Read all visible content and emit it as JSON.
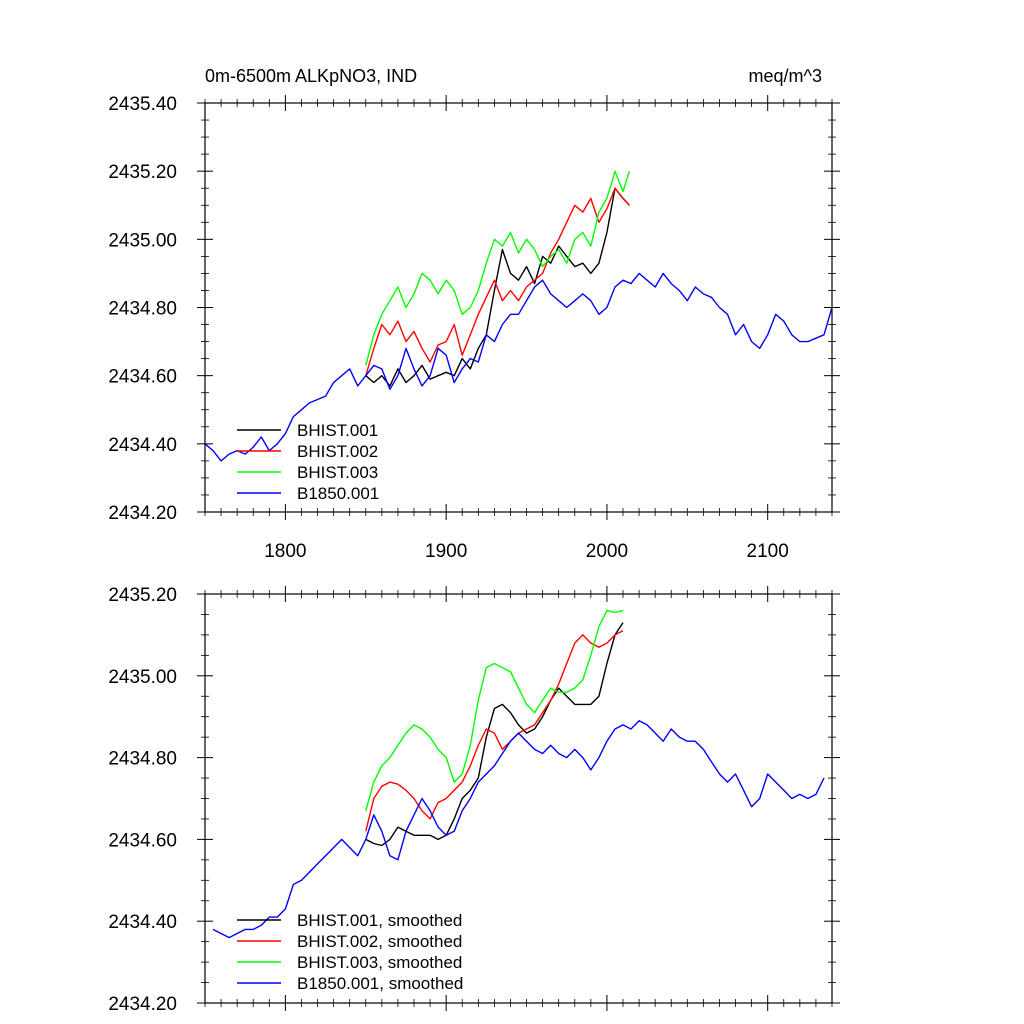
{
  "chart_data": [
    {
      "type": "line",
      "title": "0m-6500m ALKpNO3, IND",
      "units": "meq/m^3",
      "xlabel": "",
      "ylabel": "",
      "xlim": [
        1750,
        2140
      ],
      "ylim": [
        2434.2,
        2435.4
      ],
      "yticks": [
        2434.2,
        2434.4,
        2434.6,
        2434.8,
        2435.0,
        2435.2,
        2435.4
      ],
      "ytick_labels": [
        "2434.20",
        "2434.40",
        "2434.60",
        "2434.80",
        "2435.00",
        "2435.20",
        "2435.40"
      ],
      "xticks": [
        1800,
        1900,
        2000,
        2100
      ],
      "xtick_labels": [
        "1800",
        "1900",
        "2000",
        "2100"
      ],
      "legend_position": "bottom-left",
      "series": [
        {
          "name": "BHIST.001",
          "color": "#000000",
          "x": [
            1850,
            1855,
            1860,
            1865,
            1870,
            1875,
            1880,
            1885,
            1890,
            1895,
            1900,
            1905,
            1910,
            1915,
            1920,
            1925,
            1930,
            1935,
            1940,
            1945,
            1950,
            1955,
            1960,
            1965,
            1970,
            1975,
            1980,
            1985,
            1990,
            1995,
            2000,
            2005,
            2010,
            2014
          ],
          "y": [
            2434.6,
            2434.58,
            2434.6,
            2434.57,
            2434.62,
            2434.58,
            2434.6,
            2434.63,
            2434.59,
            2434.6,
            2434.61,
            2434.6,
            2434.65,
            2434.62,
            2434.68,
            2434.72,
            2434.85,
            2434.97,
            2434.9,
            2434.88,
            2434.92,
            2434.87,
            2434.95,
            2434.93,
            2434.98,
            2434.95,
            2434.92,
            2434.93,
            2434.9,
            2434.93,
            2435.02,
            2435.15,
            2435.12,
            2435.1
          ]
        },
        {
          "name": "BHIST.002",
          "color": "#ff0000",
          "x": [
            1850,
            1855,
            1860,
            1865,
            1870,
            1875,
            1880,
            1885,
            1890,
            1895,
            1900,
            1905,
            1910,
            1915,
            1920,
            1925,
            1930,
            1935,
            1940,
            1945,
            1950,
            1955,
            1960,
            1965,
            1970,
            1975,
            1980,
            1985,
            1990,
            1995,
            2000,
            2005,
            2010,
            2014
          ],
          "y": [
            2434.6,
            2434.68,
            2434.75,
            2434.72,
            2434.76,
            2434.7,
            2434.73,
            2434.68,
            2434.64,
            2434.69,
            2434.7,
            2434.75,
            2434.66,
            2434.72,
            2434.78,
            2434.83,
            2434.88,
            2434.82,
            2434.85,
            2434.82,
            2434.86,
            2434.88,
            2434.9,
            2434.96,
            2435.0,
            2435.05,
            2435.1,
            2435.08,
            2435.12,
            2435.05,
            2435.09,
            2435.15,
            2435.12,
            2435.1
          ]
        },
        {
          "name": "BHIST.003",
          "color": "#00ff00",
          "x": [
            1850,
            1855,
            1860,
            1865,
            1870,
            1875,
            1880,
            1885,
            1890,
            1895,
            1900,
            1905,
            1910,
            1915,
            1920,
            1925,
            1930,
            1935,
            1940,
            1945,
            1950,
            1955,
            1960,
            1965,
            1970,
            1975,
            1980,
            1985,
            1990,
            1995,
            2000,
            2005,
            2010,
            2014
          ],
          "y": [
            2434.63,
            2434.72,
            2434.78,
            2434.82,
            2434.86,
            2434.8,
            2434.84,
            2434.9,
            2434.88,
            2434.84,
            2434.88,
            2434.85,
            2434.78,
            2434.8,
            2434.85,
            2434.93,
            2435.0,
            2434.98,
            2435.02,
            2434.96,
            2435.0,
            2434.97,
            2434.92,
            2434.95,
            2434.97,
            2434.93,
            2435.0,
            2435.02,
            2434.98,
            2435.08,
            2435.12,
            2435.2,
            2435.14,
            2435.2
          ]
        },
        {
          "name": "B1850.001",
          "color": "#0000ff",
          "x": [
            1750,
            1755,
            1760,
            1765,
            1770,
            1775,
            1780,
            1785,
            1790,
            1795,
            1800,
            1805,
            1810,
            1815,
            1820,
            1825,
            1830,
            1835,
            1840,
            1845,
            1850,
            1855,
            1860,
            1865,
            1870,
            1875,
            1880,
            1885,
            1890,
            1895,
            1900,
            1905,
            1910,
            1915,
            1920,
            1925,
            1930,
            1935,
            1940,
            1945,
            1950,
            1955,
            1960,
            1965,
            1970,
            1975,
            1980,
            1985,
            1990,
            1995,
            2000,
            2005,
            2010,
            2015,
            2020,
            2025,
            2030,
            2035,
            2040,
            2045,
            2050,
            2055,
            2060,
            2065,
            2070,
            2075,
            2080,
            2085,
            2090,
            2095,
            2100,
            2105,
            2110,
            2115,
            2120,
            2125,
            2130,
            2135,
            2140
          ],
          "y": [
            2434.4,
            2434.38,
            2434.35,
            2434.37,
            2434.38,
            2434.37,
            2434.39,
            2434.42,
            2434.38,
            2434.4,
            2434.43,
            2434.48,
            2434.5,
            2434.52,
            2434.53,
            2434.54,
            2434.58,
            2434.6,
            2434.62,
            2434.57,
            2434.6,
            2434.63,
            2434.62,
            2434.56,
            2434.6,
            2434.68,
            2434.62,
            2434.57,
            2434.6,
            2434.68,
            2434.66,
            2434.58,
            2434.62,
            2434.65,
            2434.64,
            2434.72,
            2434.7,
            2434.75,
            2434.78,
            2434.78,
            2434.82,
            2434.86,
            2434.88,
            2434.84,
            2434.82,
            2434.8,
            2434.82,
            2434.84,
            2434.82,
            2434.78,
            2434.8,
            2434.86,
            2434.88,
            2434.87,
            2434.9,
            2434.88,
            2434.86,
            2434.9,
            2434.87,
            2434.85,
            2434.82,
            2434.86,
            2434.84,
            2434.83,
            2434.8,
            2434.78,
            2434.72,
            2434.75,
            2434.7,
            2434.68,
            2434.72,
            2434.78,
            2434.76,
            2434.72,
            2434.7,
            2434.7,
            2434.71,
            2434.72,
            2434.8
          ]
        }
      ]
    },
    {
      "type": "line",
      "title": "",
      "xlabel": "",
      "ylabel": "",
      "xlim": [
        1750,
        2140
      ],
      "ylim": [
        2434.2,
        2435.2
      ],
      "yticks": [
        2434.2,
        2434.4,
        2434.6,
        2434.8,
        2435.0,
        2435.2
      ],
      "ytick_labels": [
        "2434.20",
        "2434.40",
        "2434.60",
        "2434.80",
        "2435.00",
        "2435.20"
      ],
      "xticks": [
        1800,
        1900,
        2000,
        2100
      ],
      "xtick_labels": [],
      "legend_position": "bottom-left",
      "series": [
        {
          "name": "BHIST.001, smoothed",
          "color": "#000000",
          "x": [
            1850,
            1855,
            1860,
            1865,
            1870,
            1875,
            1880,
            1885,
            1890,
            1895,
            1900,
            1905,
            1910,
            1915,
            1920,
            1925,
            1930,
            1935,
            1940,
            1945,
            1950,
            1955,
            1960,
            1965,
            1970,
            1975,
            1980,
            1985,
            1990,
            1995,
            2000,
            2005,
            2010
          ],
          "y": [
            2434.6,
            2434.59,
            2434.585,
            2434.6,
            2434.63,
            2434.62,
            2434.61,
            2434.61,
            2434.61,
            2434.6,
            2434.61,
            2434.65,
            2434.7,
            2434.72,
            2434.75,
            2434.85,
            2434.92,
            2434.93,
            2434.91,
            2434.88,
            2434.86,
            2434.87,
            2434.9,
            2434.94,
            2434.97,
            2434.95,
            2434.93,
            2434.93,
            2434.93,
            2434.95,
            2435.03,
            2435.1,
            2435.13
          ]
        },
        {
          "name": "BHIST.002, smoothed",
          "color": "#ff0000",
          "x": [
            1850,
            1855,
            1860,
            1865,
            1870,
            1875,
            1880,
            1885,
            1890,
            1895,
            1900,
            1905,
            1910,
            1915,
            1920,
            1925,
            1930,
            1935,
            1940,
            1945,
            1950,
            1955,
            1960,
            1965,
            1970,
            1975,
            1980,
            1985,
            1990,
            1995,
            2000,
            2005,
            2010
          ],
          "y": [
            2434.62,
            2434.7,
            2434.73,
            2434.74,
            2434.735,
            2434.72,
            2434.7,
            2434.67,
            2434.65,
            2434.69,
            2434.7,
            2434.72,
            2434.74,
            2434.78,
            2434.83,
            2434.87,
            2434.86,
            2434.82,
            2434.84,
            2434.86,
            2434.87,
            2434.88,
            2434.91,
            2434.94,
            2434.98,
            2435.03,
            2435.08,
            2435.1,
            2435.08,
            2435.07,
            2435.08,
            2435.1,
            2435.11
          ]
        },
        {
          "name": "BHIST.003, smoothed",
          "color": "#00ff00",
          "x": [
            1850,
            1855,
            1860,
            1865,
            1870,
            1875,
            1880,
            1885,
            1890,
            1895,
            1900,
            1905,
            1910,
            1915,
            1920,
            1925,
            1930,
            1935,
            1940,
            1945,
            1950,
            1955,
            1960,
            1965,
            1970,
            1975,
            1980,
            1985,
            1990,
            1995,
            2000,
            2005,
            2010
          ],
          "y": [
            2434.67,
            2434.74,
            2434.78,
            2434.8,
            2434.83,
            2434.86,
            2434.88,
            2434.87,
            2434.85,
            2434.82,
            2434.8,
            2434.74,
            2434.76,
            2434.83,
            2434.94,
            2435.02,
            2435.03,
            2435.02,
            2435.01,
            2434.97,
            2434.93,
            2434.91,
            2434.94,
            2434.97,
            2434.96,
            2434.96,
            2434.97,
            2434.99,
            2435.05,
            2435.12,
            2435.16,
            2435.155,
            2435.16
          ]
        },
        {
          "name": "B1850.001, smoothed",
          "color": "#0000ff",
          "x": [
            1755,
            1760,
            1765,
            1770,
            1775,
            1780,
            1785,
            1790,
            1795,
            1800,
            1805,
            1810,
            1815,
            1820,
            1825,
            1830,
            1835,
            1840,
            1845,
            1850,
            1855,
            1860,
            1865,
            1870,
            1875,
            1880,
            1885,
            1890,
            1895,
            1900,
            1905,
            1910,
            1915,
            1920,
            1925,
            1930,
            1935,
            1940,
            1945,
            1950,
            1955,
            1960,
            1965,
            1970,
            1975,
            1980,
            1985,
            1990,
            1995,
            2000,
            2005,
            2010,
            2015,
            2020,
            2025,
            2030,
            2035,
            2040,
            2045,
            2050,
            2055,
            2060,
            2065,
            2070,
            2075,
            2080,
            2085,
            2090,
            2095,
            2100,
            2105,
            2110,
            2115,
            2120,
            2125,
            2130,
            2135
          ],
          "y": [
            2434.38,
            2434.37,
            2434.36,
            2434.37,
            2434.38,
            2434.38,
            2434.39,
            2434.41,
            2434.41,
            2434.43,
            2434.49,
            2434.5,
            2434.52,
            2434.54,
            2434.56,
            2434.58,
            2434.6,
            2434.58,
            2434.56,
            2434.6,
            2434.66,
            2434.62,
            2434.56,
            2434.55,
            2434.62,
            2434.66,
            2434.7,
            2434.67,
            2434.63,
            2434.61,
            2434.62,
            2434.67,
            2434.7,
            2434.74,
            2434.76,
            2434.78,
            2434.81,
            2434.84,
            2434.86,
            2434.84,
            2434.82,
            2434.81,
            2434.83,
            2434.81,
            2434.8,
            2434.82,
            2434.8,
            2434.77,
            2434.8,
            2434.84,
            2434.87,
            2434.88,
            2434.87,
            2434.89,
            2434.88,
            2434.86,
            2434.84,
            2434.87,
            2434.85,
            2434.84,
            2434.84,
            2434.82,
            2434.79,
            2434.76,
            2434.74,
            2434.76,
            2434.72,
            2434.68,
            2434.7,
            2434.76,
            2434.74,
            2434.72,
            2434.7,
            2434.71,
            2434.7,
            2434.71,
            2434.75
          ]
        }
      ]
    }
  ]
}
